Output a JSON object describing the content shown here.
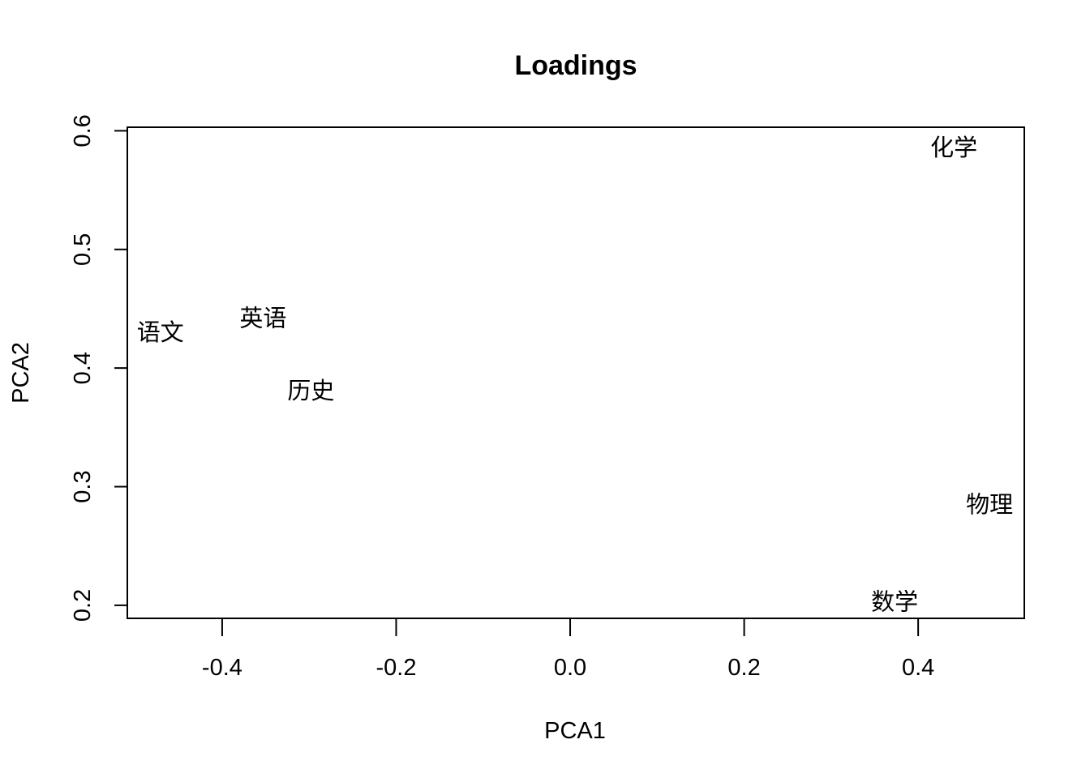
{
  "chart_data": {
    "type": "scatter",
    "title": "Loadings",
    "xlabel": "PCA1",
    "ylabel": "PCA2",
    "xlim": [
      -0.509,
      0.522
    ],
    "ylim": [
      0.189,
      0.603
    ],
    "grid": false,
    "marker": "text-labels",
    "x_ticks": [
      -0.4,
      -0.2,
      0.0,
      0.2,
      0.4
    ],
    "x_tick_labels": [
      "-0.4",
      "-0.2",
      "0.0",
      "0.2",
      "0.4"
    ],
    "y_ticks": [
      0.2,
      0.3,
      0.4,
      0.5,
      0.6
    ],
    "y_tick_labels": [
      "0.2",
      "0.3",
      "0.4",
      "0.5",
      "0.6"
    ],
    "points": [
      {
        "label": "语文",
        "x": -0.471,
        "y": 0.43
      },
      {
        "label": "英语",
        "x": -0.353,
        "y": 0.442
      },
      {
        "label": "历史",
        "x": -0.298,
        "y": 0.381
      },
      {
        "label": "化学",
        "x": 0.441,
        "y": 0.586
      },
      {
        "label": "物理",
        "x": 0.482,
        "y": 0.285
      },
      {
        "label": "数学",
        "x": 0.373,
        "y": 0.203
      }
    ]
  }
}
